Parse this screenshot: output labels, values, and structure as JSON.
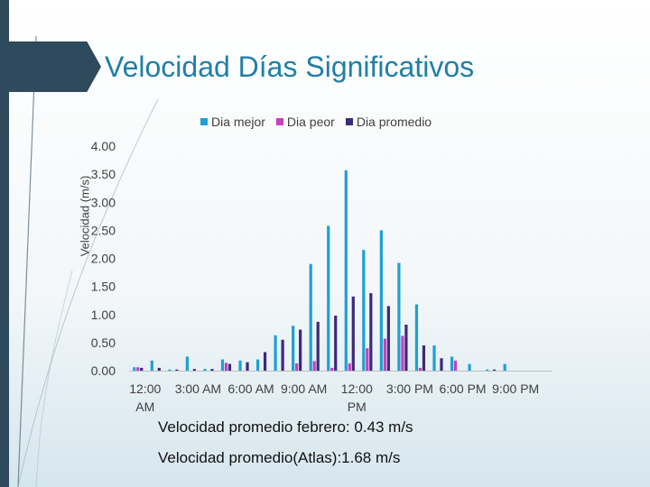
{
  "slide": {
    "title": "Velocidad Días Significativos",
    "note_february": "Velocidad promedio febrero: 0.43 m/s",
    "note_atlas": "Velocidad promedio(Atlas):1.68 m/s"
  },
  "chart_data": {
    "type": "bar",
    "title": "",
    "xlabel": "",
    "ylabel": "Velocidad (m/s)",
    "ylim": [
      0,
      4
    ],
    "yticks": [
      "0.00",
      "0.50",
      "1.00",
      "1.50",
      "2.00",
      "2.50",
      "3.00",
      "3.50",
      "4.00"
    ],
    "xtick_labels": [
      {
        "line1": "12:00",
        "line2": "AM",
        "hour": 0
      },
      {
        "line1": "3:00 AM",
        "line2": "",
        "hour": 3
      },
      {
        "line1": "6:00 AM",
        "line2": "",
        "hour": 6
      },
      {
        "line1": "9:00 AM",
        "line2": "",
        "hour": 9
      },
      {
        "line1": "12:00",
        "line2": "PM",
        "hour": 12
      },
      {
        "line1": "3:00 PM",
        "line2": "",
        "hour": 15
      },
      {
        "line1": "6:00 PM",
        "line2": "",
        "hour": 18
      },
      {
        "line1": "9:00 PM",
        "line2": "",
        "hour": 21
      }
    ],
    "legend_position": "top",
    "grid": false,
    "categories": [
      "0",
      "1",
      "2",
      "3",
      "4",
      "5",
      "6",
      "7",
      "8",
      "9",
      "10",
      "11",
      "12",
      "13",
      "14",
      "15",
      "16",
      "17",
      "18",
      "19",
      "20",
      "21",
      "22",
      "23"
    ],
    "series": [
      {
        "name": "Dia mejor",
        "color": "#1ea0d4",
        "values": [
          0.06,
          0.18,
          0.02,
          0.25,
          0.03,
          0.2,
          0.18,
          0.2,
          0.63,
          0.8,
          1.9,
          2.58,
          3.57,
          2.15,
          2.5,
          1.92,
          1.18,
          0.45,
          0.25,
          0.12,
          0.02,
          0.12,
          0.0,
          0.0
        ]
      },
      {
        "name": "Dia peor",
        "color": "#c83fbf",
        "values": [
          0.06,
          0.0,
          0.0,
          0.0,
          0.0,
          0.14,
          0.0,
          0.0,
          0.0,
          0.13,
          0.17,
          0.05,
          0.13,
          0.4,
          0.57,
          0.62,
          0.05,
          0.0,
          0.18,
          0.0,
          0.0,
          0.0,
          0.0,
          0.0
        ]
      },
      {
        "name": "Dia promedio",
        "color": "#3a2a7a",
        "values": [
          0.05,
          0.05,
          0.02,
          0.03,
          0.03,
          0.12,
          0.15,
          0.33,
          0.55,
          0.73,
          0.87,
          0.98,
          1.32,
          1.38,
          1.15,
          0.82,
          0.45,
          0.22,
          0.0,
          0.0,
          0.02,
          0.0,
          0.0,
          0.0
        ]
      }
    ]
  }
}
